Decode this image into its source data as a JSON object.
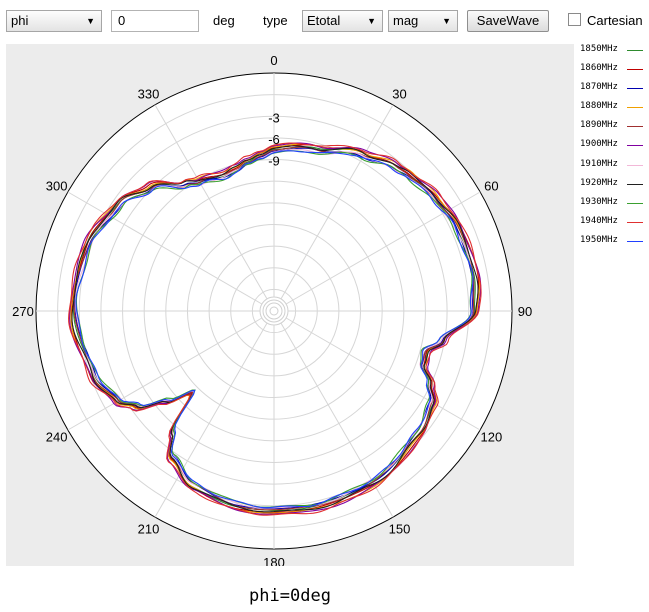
{
  "toolbar": {
    "plane_select": "phi",
    "angle_value": "0",
    "angle_unit": "deg",
    "type_label": "type",
    "field_select": "Etotal",
    "format_select": "mag",
    "save_button": "SaveWave",
    "cartesian_label": "Cartesian",
    "dropdown_icon": "triangle-down-icon"
  },
  "caption": "phi=0deg",
  "chart_data": {
    "type": "line",
    "subtype": "polar",
    "title": "",
    "angle_zero": "top",
    "angle_direction": "clockwise",
    "angle_ticks": [
      0,
      30,
      60,
      90,
      120,
      150,
      180,
      210,
      240,
      270,
      300,
      330
    ],
    "angle_tick_labels": [
      "0",
      "30",
      "60",
      "90",
      "120",
      "150",
      "180",
      "210",
      "240",
      "270",
      "300",
      "330"
    ],
    "radial_range": [
      -30,
      3
    ],
    "radial_tick_labels": [
      "-3",
      "-6",
      "-9"
    ],
    "radial_tick_values": [
      -3,
      -6,
      -9
    ],
    "grid": true,
    "legend_position": "right",
    "theta": [
      0,
      15,
      30,
      40,
      45,
      55,
      65,
      80,
      90,
      100,
      105,
      110,
      115,
      120,
      130,
      150,
      170,
      190,
      205,
      215,
      220,
      225,
      230,
      235,
      240,
      250,
      270,
      290,
      305,
      315,
      325,
      330,
      340,
      345,
      350,
      355,
      360
    ],
    "base_gain_db": [
      -7.6,
      -6.8,
      -5.0,
      -3.8,
      -3.4,
      -2.6,
      -2.0,
      -1.7,
      -2.2,
      -6.2,
      -8.2,
      -8.0,
      -6.0,
      -4.6,
      -3.7,
      -2.5,
      -2.2,
      -2.5,
      -3.3,
      -5.2,
      -8.0,
      -14.0,
      -10.5,
      -6.8,
      -5.0,
      -3.4,
      -2.2,
      -2.6,
      -3.9,
      -5.8,
      -8.5,
      -9.3,
      -9.9,
      -9.6,
      -8.9,
      -8.2,
      -7.6
    ],
    "series": [
      {
        "name": "1850MHz",
        "color": "#2e8b2e",
        "offset_db": 0.0
      },
      {
        "name": "1860MHz",
        "color": "#c00000",
        "offset_db": 0.25
      },
      {
        "name": "1870MHz",
        "color": "#0000b0",
        "offset_db": -0.25
      },
      {
        "name": "1880MHz",
        "color": "#f0a000",
        "offset_db": 0.35
      },
      {
        "name": "1890MHz",
        "color": "#a03030",
        "offset_db": -0.1
      },
      {
        "name": "1900MHz",
        "color": "#8000a0",
        "offset_db": 0.5
      },
      {
        "name": "1910MHz",
        "color": "#f2b8d8",
        "offset_db": -0.35
      },
      {
        "name": "1920MHz",
        "color": "#202020",
        "offset_db": 0.15
      },
      {
        "name": "1930MHz",
        "color": "#3aa030",
        "offset_db": -0.5
      },
      {
        "name": "1940MHz",
        "color": "#e03030",
        "offset_db": 0.6
      },
      {
        "name": "1950MHz",
        "color": "#2040ff",
        "offset_db": -0.45
      }
    ]
  }
}
